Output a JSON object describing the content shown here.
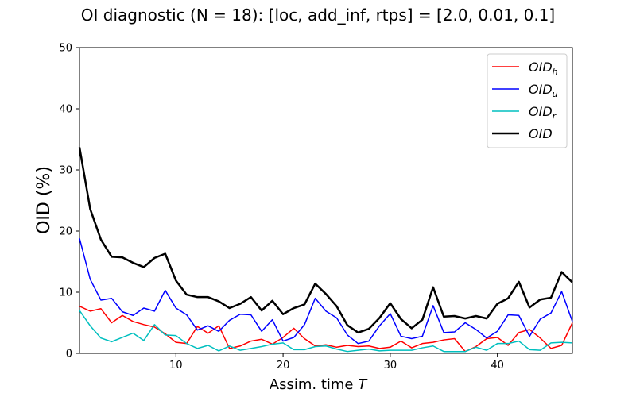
{
  "chart_data": {
    "type": "line",
    "title": "OI diagnostic  (N = 18): [loc, add_inf, rtps] = [2.0, 0.01, 0.1]",
    "xlabel": "Assim. time",
    "xlabel_var": "T",
    "ylabel": "OID (%)",
    "xlim": [
      1,
      47
    ],
    "ylim": [
      0,
      50
    ],
    "xticks": [
      10,
      20,
      30,
      40
    ],
    "yticks": [
      0,
      10,
      20,
      30,
      40,
      50
    ],
    "grid": false,
    "legend_position": "top-right",
    "x": [
      1,
      2,
      3,
      4,
      5,
      6,
      7,
      8,
      9,
      10,
      11,
      12,
      13,
      14,
      15,
      16,
      17,
      18,
      19,
      20,
      21,
      22,
      23,
      24,
      25,
      26,
      27,
      28,
      29,
      30,
      31,
      32,
      33,
      34,
      35,
      36,
      37,
      38,
      39,
      40,
      41,
      42,
      43,
      44,
      45,
      46,
      47
    ],
    "series": [
      {
        "name": "OID",
        "subscript": "h",
        "color": "#ff0000",
        "width": 1.5,
        "values": [
          7.7,
          6.9,
          7.3,
          5.0,
          6.2,
          5.2,
          4.7,
          4.3,
          3.2,
          1.8,
          1.6,
          4.4,
          3.3,
          4.5,
          0.8,
          1.2,
          2.0,
          2.3,
          1.5,
          2.6,
          4.1,
          2.4,
          1.2,
          1.4,
          1.0,
          1.3,
          1.1,
          1.2,
          0.8,
          1.0,
          2.0,
          0.9,
          1.6,
          1.8,
          2.2,
          2.4,
          0.3,
          1.1,
          2.4,
          2.6,
          1.3,
          3.4,
          3.9,
          2.5,
          0.8,
          1.3,
          5.0
        ]
      },
      {
        "name": "OID",
        "subscript": "u",
        "color": "#0000ff",
        "width": 1.5,
        "values": [
          18.8,
          12.1,
          8.7,
          9.0,
          6.8,
          6.2,
          7.4,
          6.9,
          10.3,
          7.4,
          6.3,
          3.8,
          4.5,
          3.6,
          5.4,
          6.4,
          6.3,
          3.6,
          5.5,
          2.0,
          2.6,
          4.7,
          9.0,
          6.9,
          5.8,
          3.0,
          1.6,
          2.0,
          4.5,
          6.5,
          2.8,
          2.4,
          2.8,
          7.8,
          3.4,
          3.5,
          5.0,
          3.9,
          2.5,
          3.6,
          6.3,
          6.2,
          2.8,
          5.6,
          6.6,
          10.1,
          5.2
        ]
      },
      {
        "name": "OID",
        "subscript": "r",
        "color": "#00bfbf",
        "width": 1.5,
        "values": [
          7.0,
          4.5,
          2.5,
          1.9,
          2.6,
          3.3,
          2.1,
          4.7,
          3.0,
          2.9,
          1.6,
          0.8,
          1.3,
          0.4,
          1.2,
          0.5,
          0.8,
          1.1,
          1.5,
          1.7,
          0.6,
          0.6,
          1.1,
          1.2,
          0.7,
          0.3,
          0.5,
          0.7,
          0.4,
          0.5,
          0.5,
          0.5,
          0.9,
          1.2,
          0.3,
          0.3,
          0.3,
          1.0,
          0.5,
          1.6,
          1.6,
          2.0,
          0.6,
          0.5,
          1.7,
          1.8,
          1.7
        ]
      },
      {
        "name": "OID",
        "subscript": "",
        "color": "#000000",
        "width": 2.5,
        "values": [
          33.7,
          23.6,
          18.6,
          15.8,
          15.7,
          14.8,
          14.1,
          15.6,
          16.3,
          11.9,
          9.6,
          9.2,
          9.2,
          8.5,
          7.4,
          8.1,
          9.2,
          7.0,
          8.6,
          6.4,
          7.4,
          8.0,
          11.4,
          9.7,
          7.7,
          4.6,
          3.4,
          4.0,
          5.8,
          8.2,
          5.6,
          4.1,
          5.5,
          10.8,
          6.0,
          6.1,
          5.7,
          6.1,
          5.7,
          8.1,
          9.0,
          11.7,
          7.5,
          8.8,
          9.1,
          13.3,
          11.6
        ]
      }
    ]
  }
}
